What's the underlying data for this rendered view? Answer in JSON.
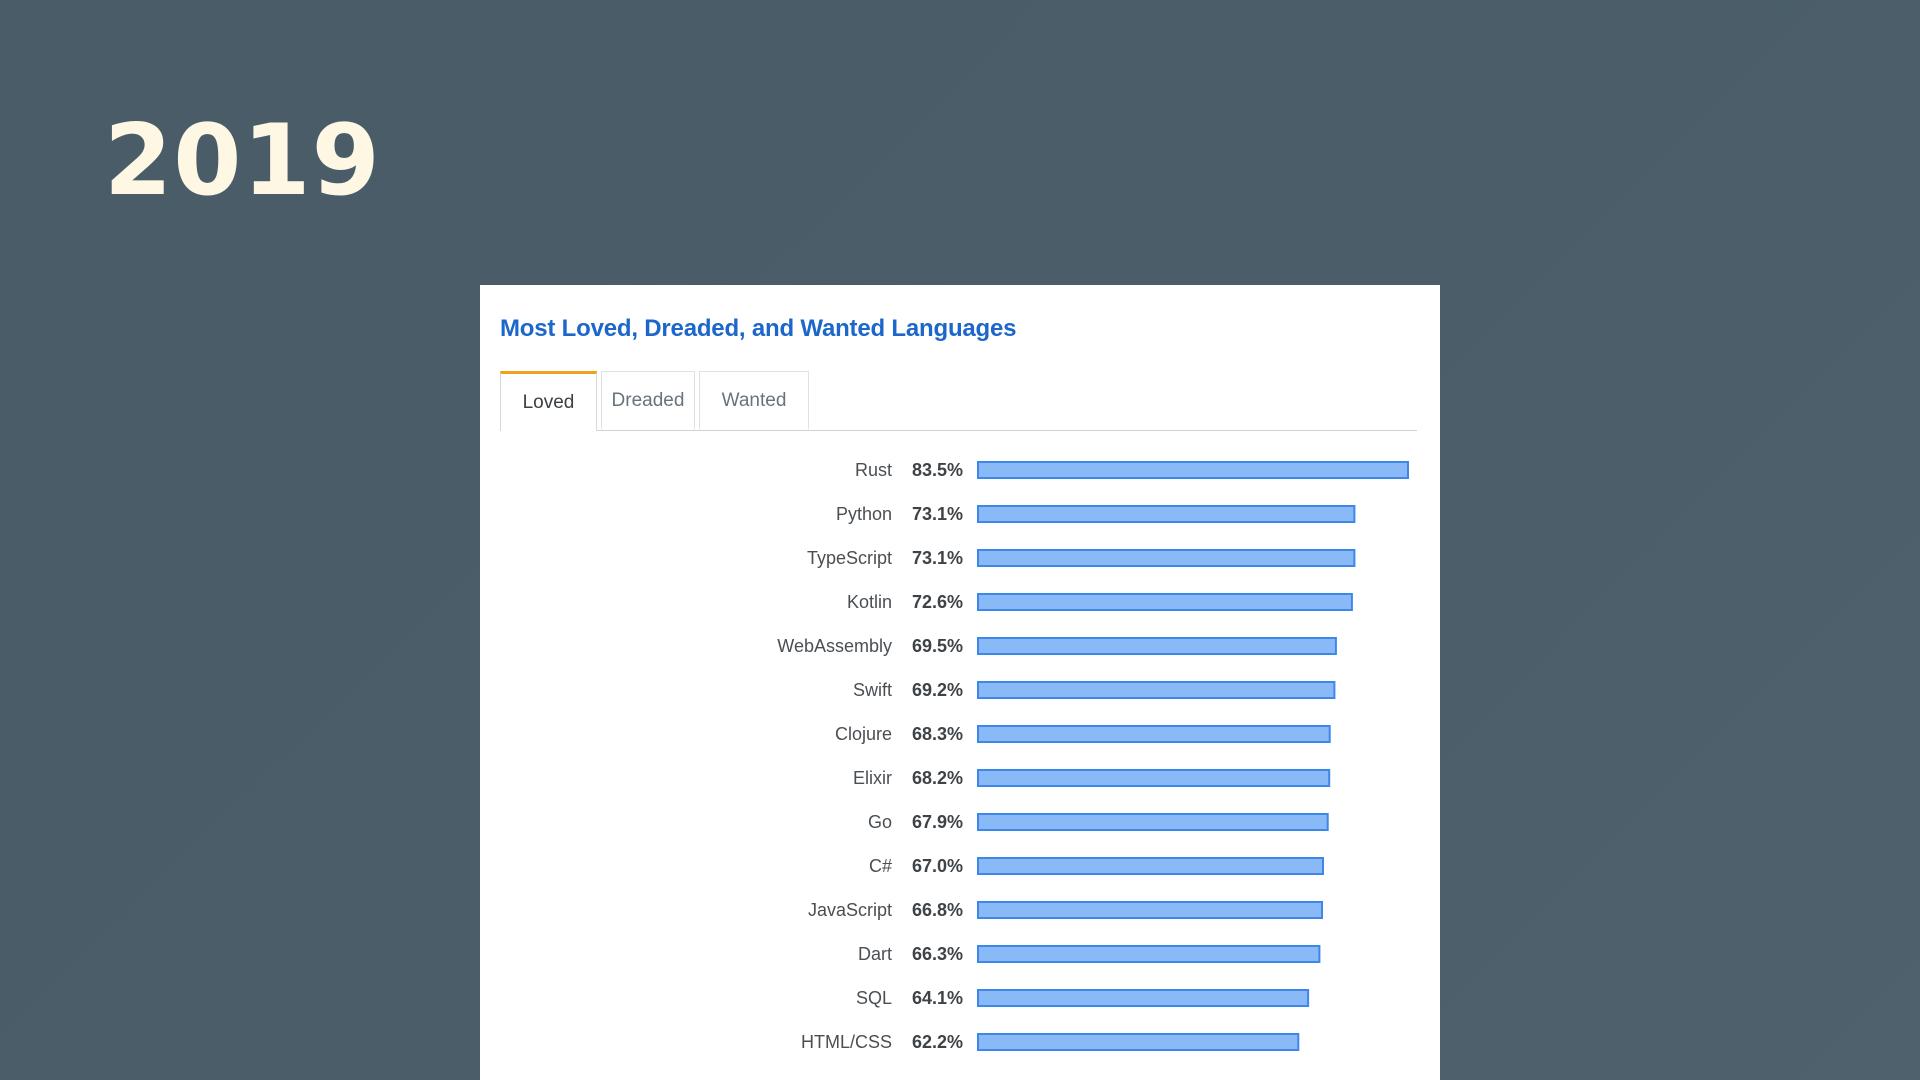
{
  "slide": {
    "title": "2019"
  },
  "panel": {
    "title": "Most Loved, Dreaded, and Wanted Languages",
    "tabs": [
      {
        "label": "Loved",
        "active": true
      },
      {
        "label": "Dreaded",
        "active": false
      },
      {
        "label": "Wanted",
        "active": false
      }
    ]
  },
  "colors": {
    "background": "#4a5d69",
    "title": "#fdf7e4",
    "panel_title": "#1c67c9",
    "tab_accent": "#f0a21c",
    "bar_fill": "#8ab9f7",
    "bar_stroke": "#3f86ea"
  },
  "chart_data": {
    "type": "bar",
    "orientation": "horizontal",
    "categories": [
      "Rust",
      "Python",
      "TypeScript",
      "Kotlin",
      "WebAssembly",
      "Swift",
      "Clojure",
      "Elixir",
      "Go",
      "C#",
      "JavaScript",
      "Dart",
      "SQL",
      "HTML/CSS"
    ],
    "values": [
      83.5,
      73.1,
      73.1,
      72.6,
      69.5,
      69.2,
      68.3,
      68.2,
      67.9,
      67.0,
      66.8,
      66.3,
      64.1,
      62.2
    ],
    "value_labels": [
      "83.5%",
      "73.1%",
      "73.1%",
      "72.6%",
      "69.5%",
      "69.2%",
      "68.3%",
      "68.2%",
      "67.9%",
      "67.0%",
      "66.8%",
      "66.3%",
      "64.1%",
      "62.2%"
    ],
    "unit": "%",
    "xlim": [
      0,
      83.5
    ],
    "grid": false,
    "legend": "none"
  }
}
